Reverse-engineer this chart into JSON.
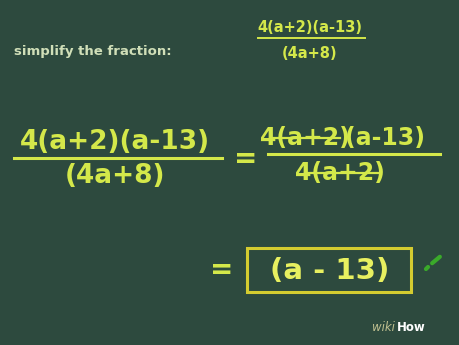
{
  "bg_color": "#2d4a3e",
  "text_color": "#d4e84a",
  "text_color_bright": "#e8f060",
  "white_text_color": "#d0dfb8",
  "green_check_color": "#3aaa2a",
  "box_color": "#d4cc30",
  "figsize": [
    4.6,
    3.45
  ],
  "dpi": 100,
  "top_label": "simplify the fraction:",
  "top_num": "4(a+2)(a-13)",
  "top_den": "(4a+8)",
  "left_num": "4(a+2)(a-13)",
  "left_den": "(4a+8)",
  "right_num_struck": "4(a+2)",
  "right_num_rest": "(a-13)",
  "right_den_struck": "4(a+2)",
  "answer": "(a - 13)",
  "wikihow_wiki": "wiki",
  "wikihow_how": "How"
}
